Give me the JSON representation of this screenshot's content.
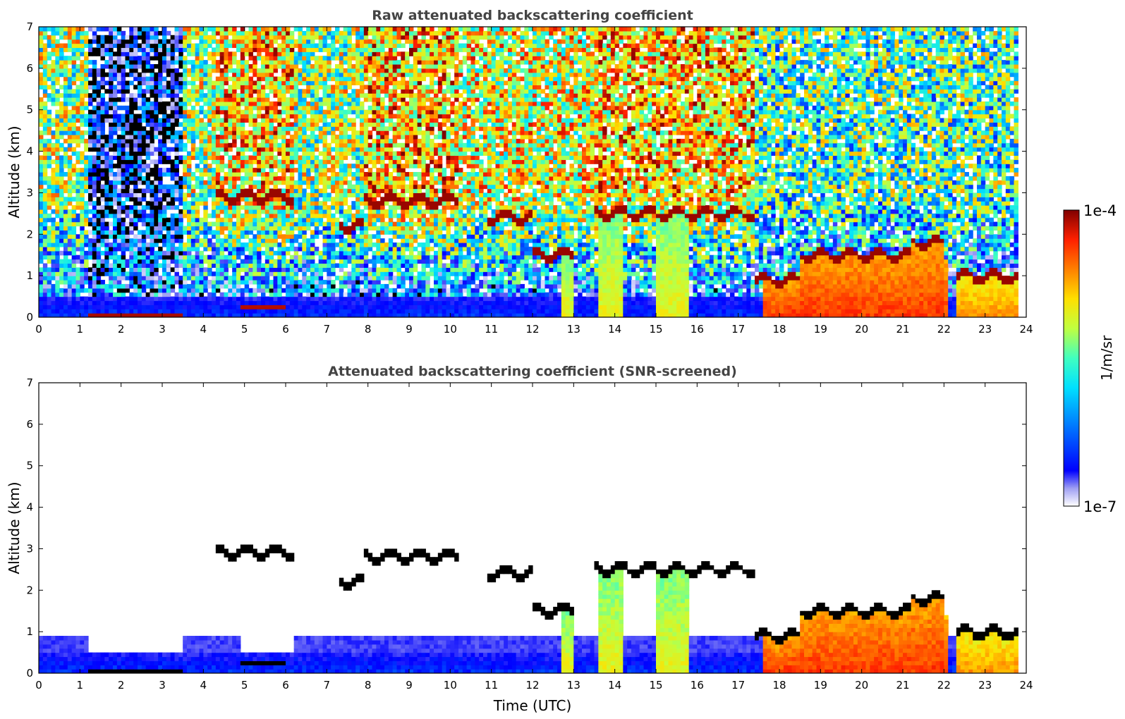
{
  "figure": {
    "colorbar": {
      "label": "1/m/sr",
      "max_label": "1e-4",
      "min_label": "1e-7",
      "scale": "log",
      "range": [
        1e-07,
        0.0001
      ],
      "colormap": [
        "#ffffff",
        "#9f9ff3",
        "#0000ff",
        "#0080ff",
        "#00e0ff",
        "#40ffc0",
        "#c0ff40",
        "#ffe000",
        "#ff8000",
        "#ff2000",
        "#800000"
      ]
    }
  },
  "chart_data": [
    {
      "type": "heatmap",
      "title": "Raw attenuated backscattering coefficient",
      "xlabel": "",
      "ylabel": "Altitude (km)",
      "xlim": [
        0,
        24
      ],
      "ylim": [
        0,
        7
      ],
      "xticks": [
        "0",
        "1",
        "2",
        "3",
        "4",
        "5",
        "6",
        "7",
        "8",
        "9",
        "10",
        "11",
        "12",
        "13",
        "14",
        "15",
        "16",
        "17",
        "18",
        "19",
        "20",
        "21",
        "22",
        "23",
        "24"
      ],
      "yticks": [
        "0",
        "1",
        "2",
        "3",
        "4",
        "5",
        "6",
        "7"
      ],
      "grid": false,
      "value_unit": "1/m/sr",
      "features": {
        "aerosol_layer_top_km": 0.5,
        "elevated_cloud_layers": [
          {
            "time": [
              4.3,
              6.2
            ],
            "altitude_km": 2.9
          },
          {
            "time": [
              7.9,
              10.2
            ],
            "altitude_km": 2.8
          },
          {
            "time": [
              13.5,
              17.4
            ],
            "altitude_km": 2.5
          }
        ],
        "low_dense_cloud": [
          {
            "time": [
              1.2,
              3.5
            ],
            "altitude_km": 0.1
          },
          {
            "time": [
              4.9,
              6.0
            ],
            "altitude_km": 0.25
          }
        ],
        "precipitation_columns": [
          {
            "time": [
              12.7,
              13.0
            ]
          },
          {
            "time": [
              13.6,
              14.2
            ]
          },
          {
            "time": [
              15.0,
              15.8
            ]
          },
          {
            "time": [
              17.6,
              23.8
            ]
          }
        ]
      }
    },
    {
      "type": "heatmap",
      "title": "Attenuated backscattering coefficient (SNR-screened)",
      "xlabel": "Time (UTC)",
      "ylabel": "Altitude (km)",
      "xlim": [
        0,
        24
      ],
      "ylim": [
        0,
        7
      ],
      "xticks": [
        "0",
        "1",
        "2",
        "3",
        "4",
        "5",
        "6",
        "7",
        "8",
        "9",
        "10",
        "11",
        "12",
        "13",
        "14",
        "15",
        "16",
        "17",
        "18",
        "19",
        "20",
        "21",
        "22",
        "23",
        "24"
      ],
      "yticks": [
        "0",
        "1",
        "2",
        "3",
        "4",
        "5",
        "6",
        "7"
      ],
      "grid": false,
      "value_unit": "1/m/sr"
    }
  ]
}
